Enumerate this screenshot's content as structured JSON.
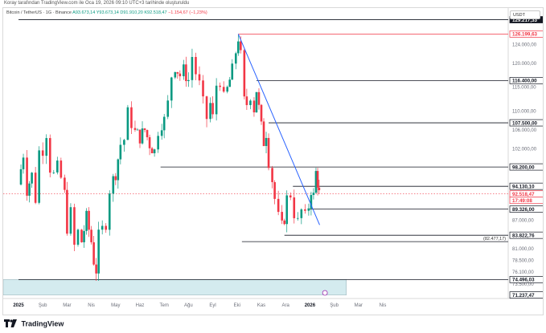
{
  "header": {
    "published_note": "Koray tarafından TradingView.com ile Oca 19, 2026 09:10 UTC+3 tarihinde oluşturuldu",
    "symbol": "Bitcoin / TetherUS · 1G · Binance",
    "ohlc": {
      "open": "A93.673,14",
      "high": "Y93.673,14",
      "low": "D91.910,20",
      "close": "K92.518,47",
      "change": "−1.154,67 (−1,23%)"
    }
  },
  "currency_button": "USDT",
  "footer": {
    "brand": "TradingView"
  },
  "chart_data": {
    "type": "candlestick",
    "x_ticks": [
      "2025",
      "Şub",
      "Mar",
      "Nis",
      "May",
      "Haz",
      "Tem",
      "Ağu",
      "Eyl",
      "Eki",
      "Kas",
      "Ara",
      "2026",
      "Şub",
      "Mar",
      "Nis"
    ],
    "y_range": [
      70500,
      131000
    ],
    "y_ticks": [
      "124.000,00",
      "120.000,00",
      "115.000,00",
      "110.000,00",
      "106.000,00",
      "102.000,00",
      "87.000,00",
      "81.000,00",
      "78.500,00",
      "76.100,00",
      "73.500,00"
    ],
    "price_labels": [
      {
        "value": 129217.33,
        "text": "129.217,33",
        "style": "black"
      },
      {
        "value": 126199.63,
        "text": "126.199,63",
        "style": "red-outline"
      },
      {
        "value": 116400.0,
        "text": "116.400,00",
        "style": "outline"
      },
      {
        "value": 107500.0,
        "text": "107.500,00",
        "style": "outline"
      },
      {
        "value": 98200.0,
        "text": "98.200,00",
        "style": "outline"
      },
      {
        "value": 94130.1,
        "text": "94.130,10",
        "style": "outline"
      },
      {
        "value": 92518.47,
        "text": "92.518,47",
        "style": "red"
      },
      {
        "countdown": "17:49:08",
        "style": "red"
      },
      {
        "value": 89326.0,
        "text": "89.326,00",
        "style": "outline"
      },
      {
        "value": 83822.76,
        "text": "83.822,76",
        "style": "outline"
      },
      {
        "value": 74496.03,
        "text": "74.496,03",
        "style": "outline"
      },
      {
        "value": 71237.47,
        "text": "71.237,47",
        "style": "outline"
      }
    ],
    "annotation": {
      "text": "(82.477,17)",
      "value": 82477.17
    },
    "current_price": 92518.47,
    "trendline": {
      "from": {
        "month": 9.05,
        "price": 126199.63
      },
      "to": {
        "month": 12.4,
        "price": 86000
      }
    },
    "horizontal_lines": [
      {
        "value": 129217.33,
        "from_month": 0
      },
      {
        "value": 126199.63,
        "from_month": 9.05,
        "color": "#f23645"
      },
      {
        "value": 116400.0,
        "from_month": 9.8
      },
      {
        "value": 107500.0,
        "from_month": 10.3
      },
      {
        "value": 98200.0,
        "from_month": 5.85
      },
      {
        "value": 94130.1,
        "from_month": 11.3
      },
      {
        "value": 89326.0,
        "from_month": 11.9
      },
      {
        "value": 83822.76,
        "from_month": 10.95
      },
      {
        "value": 82477.17,
        "from_month": 9.2
      },
      {
        "value": 74496.03,
        "from_month": 0
      }
    ],
    "zone": {
      "from_price": 71237.47,
      "to_price": 74496.03,
      "to_month": 13.5
    },
    "price_series": [
      [
        0.0,
        94500
      ],
      [
        0.2,
        101000
      ],
      [
        0.35,
        93500
      ],
      [
        0.55,
        96500
      ],
      [
        0.7,
        91500
      ],
      [
        0.85,
        101500
      ],
      [
        1.0,
        102000
      ],
      [
        1.15,
        105500
      ],
      [
        1.3,
        98000
      ],
      [
        1.45,
        96500
      ],
      [
        1.6,
        98000
      ],
      [
        1.75,
        95800
      ],
      [
        1.9,
        92500
      ],
      [
        2.0,
        85500
      ],
      [
        2.15,
        88500
      ],
      [
        2.3,
        81500
      ],
      [
        2.45,
        84500
      ],
      [
        2.6,
        82500
      ],
      [
        2.8,
        87500
      ],
      [
        3.0,
        82500
      ],
      [
        3.1,
        78500
      ],
      [
        3.2,
        76500
      ],
      [
        3.3,
        83500
      ],
      [
        3.45,
        85000
      ],
      [
        3.6,
        86500
      ],
      [
        3.75,
        93500
      ],
      [
        3.9,
        95500
      ],
      [
        4.0,
        97000
      ],
      [
        4.2,
        103000
      ],
      [
        4.35,
        104000
      ],
      [
        4.5,
        109500
      ],
      [
        4.65,
        107500
      ],
      [
        4.8,
        105500
      ],
      [
        5.0,
        104500
      ],
      [
        5.2,
        106000
      ],
      [
        5.4,
        103000
      ],
      [
        5.6,
        101500
      ],
      [
        5.75,
        106000
      ],
      [
        5.9,
        107500
      ],
      [
        6.0,
        108000
      ],
      [
        6.15,
        111500
      ],
      [
        6.3,
        117500
      ],
      [
        6.45,
        119500
      ],
      [
        6.65,
        117500
      ],
      [
        6.8,
        118500
      ],
      [
        7.0,
        116500
      ],
      [
        7.15,
        121500
      ],
      [
        7.3,
        118000
      ],
      [
        7.45,
        115500
      ],
      [
        7.6,
        111500
      ],
      [
        7.75,
        108500
      ],
      [
        7.9,
        111500
      ],
      [
        8.0,
        108500
      ],
      [
        8.15,
        115500
      ],
      [
        8.3,
        116500
      ],
      [
        8.45,
        112500
      ],
      [
        8.6,
        114500
      ],
      [
        8.8,
        118500
      ],
      [
        8.95,
        122500
      ],
      [
        9.05,
        125500
      ],
      [
        9.15,
        121500
      ],
      [
        9.3,
        112000
      ],
      [
        9.4,
        111500
      ],
      [
        9.55,
        113500
      ],
      [
        9.7,
        110500
      ],
      [
        9.8,
        114500
      ],
      [
        9.9,
        110500
      ],
      [
        10.0,
        106500
      ],
      [
        10.1,
        103500
      ],
      [
        10.2,
        105500
      ],
      [
        10.3,
        99500
      ],
      [
        10.45,
        95500
      ],
      [
        10.55,
        91500
      ],
      [
        10.7,
        87500
      ],
      [
        10.85,
        85500
      ],
      [
        10.95,
        87500
      ],
      [
        11.05,
        91500
      ],
      [
        11.2,
        92500
      ],
      [
        11.35,
        88500
      ],
      [
        11.5,
        86500
      ],
      [
        11.65,
        89000
      ],
      [
        11.8,
        87500
      ],
      [
        11.95,
        90000
      ],
      [
        12.05,
        93500
      ],
      [
        12.15,
        92000
      ],
      [
        12.25,
        97000
      ],
      [
        12.32,
        95000
      ],
      [
        12.38,
        92500
      ]
    ]
  }
}
